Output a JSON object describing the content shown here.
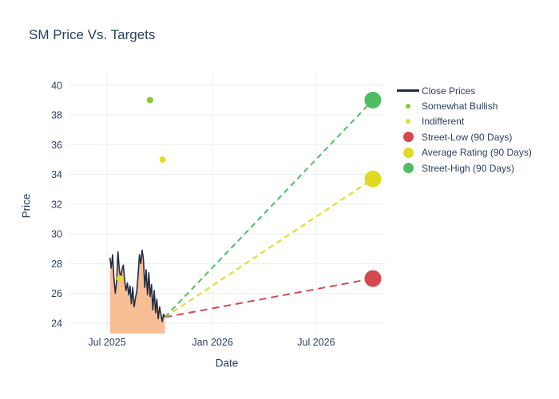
{
  "title": "SM Price Vs. Targets",
  "colors": {
    "title_text": "#2a3f5f",
    "axis_text": "#2a3f5f",
    "close_line": "#222c44",
    "close_fill": "#f8be94",
    "somewhat_bullish": "#8ac832",
    "indifferent": "#e4df21",
    "street_low": "#d4494f",
    "average_rating": "#e0db20",
    "street_high": "#4fbe63",
    "grid": "#e9eef6"
  },
  "legend": {
    "items": [
      {
        "label": "Close Prices",
        "type": "line",
        "color": "#222c44"
      },
      {
        "label": "Somewhat Bullish",
        "type": "dot-sm",
        "color": "#8ac832"
      },
      {
        "label": "Indifferent",
        "type": "dot-sm",
        "color": "#e4df21"
      },
      {
        "label": "Street-Low (90 Days)",
        "type": "dot-lg",
        "color": "#d4494f"
      },
      {
        "label": "Average Rating (90 Days)",
        "type": "dot-lg",
        "color": "#e0db20"
      },
      {
        "label": "Street-High (90 Days)",
        "type": "dot-lg",
        "color": "#4fbe63"
      }
    ]
  },
  "chart_data": {
    "type": "line",
    "title": "SM Price Vs. Targets",
    "xlabel": "Date",
    "ylabel": "Price",
    "grid_color": "#e9eef6",
    "x_axis": {
      "range": [
        "2025-04-25",
        "2026-10-29"
      ],
      "ticks": [
        {
          "date": "2025-07-01",
          "label": "Jul 2025"
        },
        {
          "date": "2026-01-01",
          "label": "Jan 2026"
        },
        {
          "date": "2026-07-01",
          "label": "Jul 2026"
        }
      ]
    },
    "y_axis": {
      "range": [
        23.3,
        40.9
      ],
      "ticks": [
        24,
        26,
        28,
        30,
        32,
        34,
        36,
        38,
        40
      ]
    },
    "series": [
      {
        "name": "Close Prices",
        "type": "line+area",
        "color": "#222c44",
        "fill_color": "#f8be94",
        "start_date": "2025-07-06",
        "end_date": "2025-10-10",
        "values": [
          28.4,
          27.7,
          28.6,
          27.0,
          26.0,
          26.9,
          28.8,
          27.6,
          27.0,
          27.6,
          27.9,
          26.9,
          26.2,
          26.7,
          25.9,
          26.5,
          25.3,
          26.4,
          25.1,
          25.7,
          26.1,
          27.2,
          28.6,
          28.0,
          28.9,
          28.3,
          26.4,
          27.6,
          25.9,
          27.4,
          25.8,
          26.6,
          24.9,
          26.2,
          24.7,
          25.6,
          24.3,
          25.1,
          24.6,
          24.1,
          24.6,
          24.4
        ]
      }
    ],
    "sentiment_points": [
      {
        "name": "Somewhat Bullish",
        "date": "2025-09-14",
        "value": 39.0,
        "color": "#8ac832"
      },
      {
        "name": "Indifferent",
        "date": "2025-07-23",
        "value": 27.0,
        "color": "#e4df21"
      },
      {
        "name": "Indifferent",
        "date": "2025-10-06",
        "value": 35.0,
        "color": "#e4df21"
      }
    ],
    "targets": [
      {
        "name": "Street-Low (90 Days)",
        "date": "2026-10-08",
        "value": 27.0,
        "color": "#d4494f",
        "dash": "9 6"
      },
      {
        "name": "Average Rating (90 Days)",
        "date": "2026-10-08",
        "value": 33.7,
        "color": "#e0db20",
        "dash": "7 5"
      },
      {
        "name": "Street-High (90 Days)",
        "date": "2026-10-08",
        "value": 39.0,
        "color": "#4fbe63",
        "dash": "7 5"
      }
    ]
  }
}
